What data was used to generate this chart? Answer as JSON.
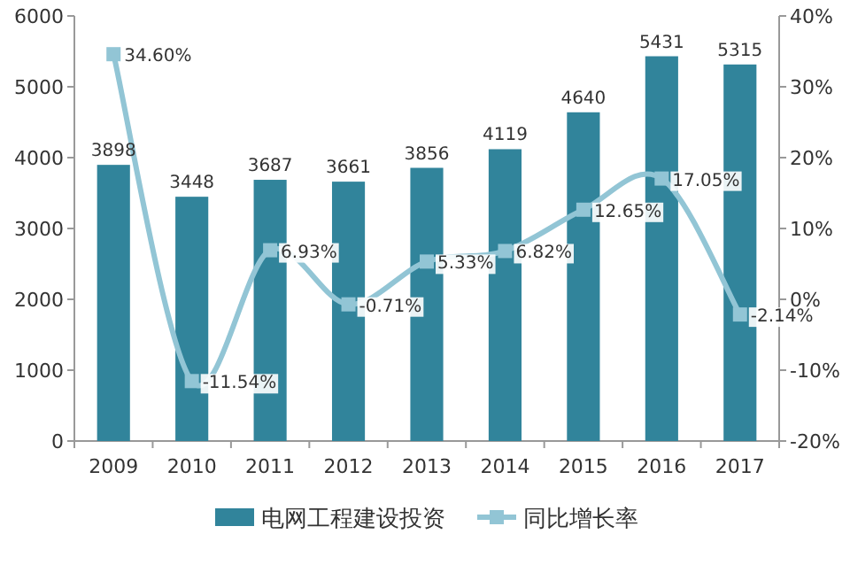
{
  "chart_data": {
    "type": "bar",
    "categories": [
      "2009",
      "2010",
      "2011",
      "2012",
      "2013",
      "2014",
      "2015",
      "2016",
      "2017"
    ],
    "series": [
      {
        "name": "电网工程建设投资",
        "color": "#31849b",
        "values": [
          3898,
          3448,
          3687,
          3661,
          3856,
          4119,
          4640,
          5431,
          5315
        ]
      },
      {
        "name": "同比增长率",
        "type": "line",
        "axis": "y2",
        "color": "#92c5d5",
        "marker": "square",
        "values": [
          34.6,
          -11.54,
          6.93,
          -0.71,
          5.33,
          6.82,
          12.65,
          17.05,
          -2.14
        ],
        "value_labels": [
          "34.60%",
          "-11.54%",
          "6.93%",
          "-0.71%",
          "5.33%",
          "6.82%",
          "12.65%",
          "17.05%",
          "-2.14%"
        ]
      }
    ],
    "data_labels": true,
    "ylim": [
      0,
      6000
    ],
    "yticks": [
      0,
      1000,
      2000,
      3000,
      4000,
      5000,
      6000
    ],
    "y2lim": [
      -20,
      40
    ],
    "y2ticks": [
      {
        "value": -20,
        "label": "-20%"
      },
      {
        "value": -10,
        "label": "-10%"
      },
      {
        "value": 0,
        "label": "0%"
      },
      {
        "value": 10,
        "label": "10%"
      },
      {
        "value": 20,
        "label": "20%"
      },
      {
        "value": 30,
        "label": "30%"
      },
      {
        "value": 40,
        "label": "40%"
      }
    ],
    "grid": false,
    "legend": "bottom"
  }
}
